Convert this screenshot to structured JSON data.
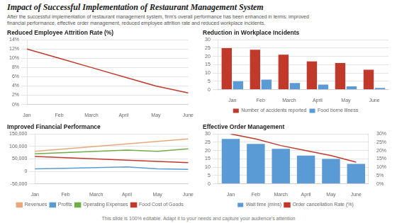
{
  "title": "Impact of Successful Implementation of Restaurant Management System",
  "subtitle": "After the successful implementation of restaurant management system, firm's overall performance has been enhanced in terms: improved\nfinancial performance, effective order management, reduced employee attrition rate and reduced workplace incidents.",
  "annotations": [
    "This slide is 100% editable. Adapt it to your needs and capture your audience's attention"
  ],
  "chart_data": [
    {
      "type": "line",
      "title": "Reduced Employee Attrition Rate (%)",
      "categories": [
        "Jan",
        "Feb",
        "March",
        "April",
        "May",
        "June"
      ],
      "values": [
        12,
        10,
        8,
        6,
        4,
        2.5
      ],
      "color": "#c0392b",
      "ylim": [
        0,
        14
      ],
      "yticks": [
        {
          "value": 0,
          "label": "0%"
        },
        {
          "value": 2,
          "label": "2%"
        },
        {
          "value": 4,
          "label": "4%"
        },
        {
          "value": 6,
          "label": "6%"
        },
        {
          "value": 8,
          "label": "8%"
        },
        {
          "value": 10,
          "label": "10%"
        },
        {
          "value": 12,
          "label": "12%"
        },
        {
          "value": 14,
          "label": "14%"
        }
      ],
      "grid": "y"
    },
    {
      "type": "bar",
      "title": "Reduction in Workplace Incidents",
      "categories": [
        "Jan",
        "Feb",
        "March",
        "April",
        "May",
        "June"
      ],
      "series": [
        {
          "name": "Number of accidents reported",
          "color": "#c0392b",
          "values": [
            25,
            24,
            21,
            17,
            16,
            12
          ]
        },
        {
          "name": "Food borne illness",
          "color": "#5b9bd5",
          "values": [
            5,
            6,
            4,
            3,
            2,
            1
          ]
        }
      ],
      "ylim": [
        0,
        30
      ],
      "yticks": [
        0,
        5,
        10,
        15,
        20,
        25,
        30
      ],
      "grid": "y",
      "legend": "bottom"
    },
    {
      "type": "line",
      "title": "Improved Financial Performance",
      "categories": [
        "Jan",
        "Feb",
        "March",
        "April",
        "May",
        "June"
      ],
      "series": [
        {
          "name": "Revenues",
          "color": "#e8a87c",
          "values": [
            80000,
            90000,
            100000,
            110000,
            120000,
            130000
          ]
        },
        {
          "name": "Profits",
          "color": "#5b9bd5",
          "values": [
            10000,
            12000,
            15000,
            18000,
            10000,
            8000
          ]
        },
        {
          "name": "Operating Expenses",
          "color": "#70ad47",
          "values": [
            70000,
            75000,
            80000,
            85000,
            80000,
            90000
          ]
        },
        {
          "name": "Food Cost of Goods",
          "color": "#c0392b",
          "values": [
            60000,
            55000,
            50000,
            45000,
            40000,
            35000
          ]
        }
      ],
      "ylim": [
        -50000,
        150000
      ],
      "yticks": [
        {
          "value": -50000,
          "label": "-50,000"
        },
        0,
        {
          "value": 50000,
          "label": "50,000"
        },
        {
          "value": 100000,
          "label": "100,000"
        },
        {
          "value": 150000,
          "label": "150,000"
        }
      ],
      "grid": "y",
      "legend": "bottom"
    },
    {
      "type": "bar",
      "title": "Effective Order Management",
      "categories": [
        "Jan",
        "Feb",
        "March",
        "April",
        "May",
        "June"
      ],
      "series": [
        {
          "name": "Wait time (mins)",
          "color": "#5b9bd5",
          "values": [
            27,
            24,
            21,
            17,
            15,
            12
          ]
        },
        {
          "name": "Order cancellation Rate (%)",
          "color": "#c0392b",
          "values": [
            0.3,
            0.27,
            0.23,
            0.2,
            0.17,
            0.13
          ],
          "type": "line",
          "axis": "y2"
        }
      ],
      "ylim": [
        0,
        30
      ],
      "yticks": [
        0,
        5,
        10,
        15,
        20,
        25,
        30
      ],
      "y2lim": [
        0,
        0.3
      ],
      "y2ticks": [
        {
          "value": 0.0,
          "label": "0%"
        },
        {
          "value": 0.05,
          "label": "5%"
        },
        {
          "value": 0.1,
          "label": "10%"
        },
        {
          "value": 0.15,
          "label": "15%"
        },
        {
          "value": 0.2,
          "label": "20%"
        },
        {
          "value": 0.25,
          "label": "25%"
        },
        {
          "value": 0.3,
          "label": "30%"
        }
      ],
      "grid": "y",
      "legend": "bottom"
    }
  ]
}
